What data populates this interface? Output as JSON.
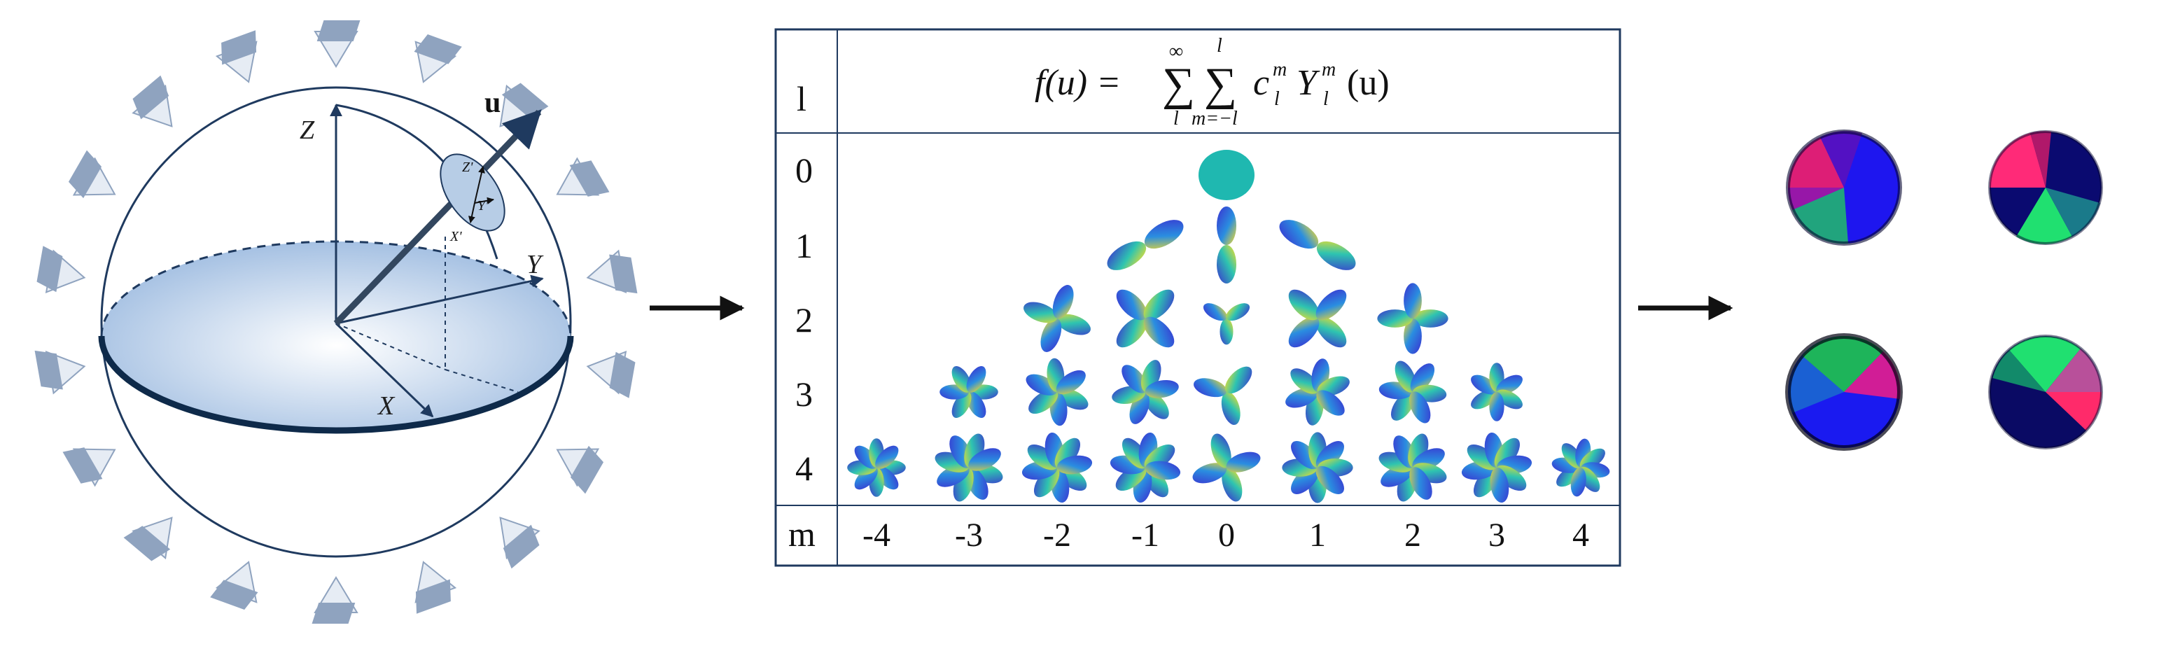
{
  "sphere_panel": {
    "axis_labels": {
      "z": "Z",
      "y": "Y",
      "x": "X"
    },
    "local_axis_labels": {
      "z": "Z'",
      "y": "Y'",
      "x": "X'"
    },
    "vector_label": "u"
  },
  "harmonics_table": {
    "header_row_label": "l",
    "formula": {
      "lhs": "f(u) =",
      "outer_sum_top": "∞",
      "outer_sum_bottom": "l",
      "inner_sum_top": "l",
      "inner_sum_bottom": "m=−l",
      "rhs": "c",
      "rhs_sup": "m",
      "rhs_sub": "l",
      "basis": "Y",
      "basis_sup": "m",
      "basis_sub": "l",
      "basis_arg": "(u)"
    },
    "row_labels": [
      "0",
      "1",
      "2",
      "3",
      "4"
    ],
    "footer_label": "m",
    "m_labels": [
      "-4",
      "-3",
      "-2",
      "-1",
      "0",
      "1",
      "2",
      "3",
      "4"
    ]
  },
  "colors": {
    "frame": "#1f3a5f",
    "sphere_fill": "#b7cde6",
    "lobe_yellow": "#f5d20f",
    "lobe_blue": "#3a36d6",
    "lobe_cyan": "#1fb8b0",
    "camera": "#8fa3bf"
  }
}
